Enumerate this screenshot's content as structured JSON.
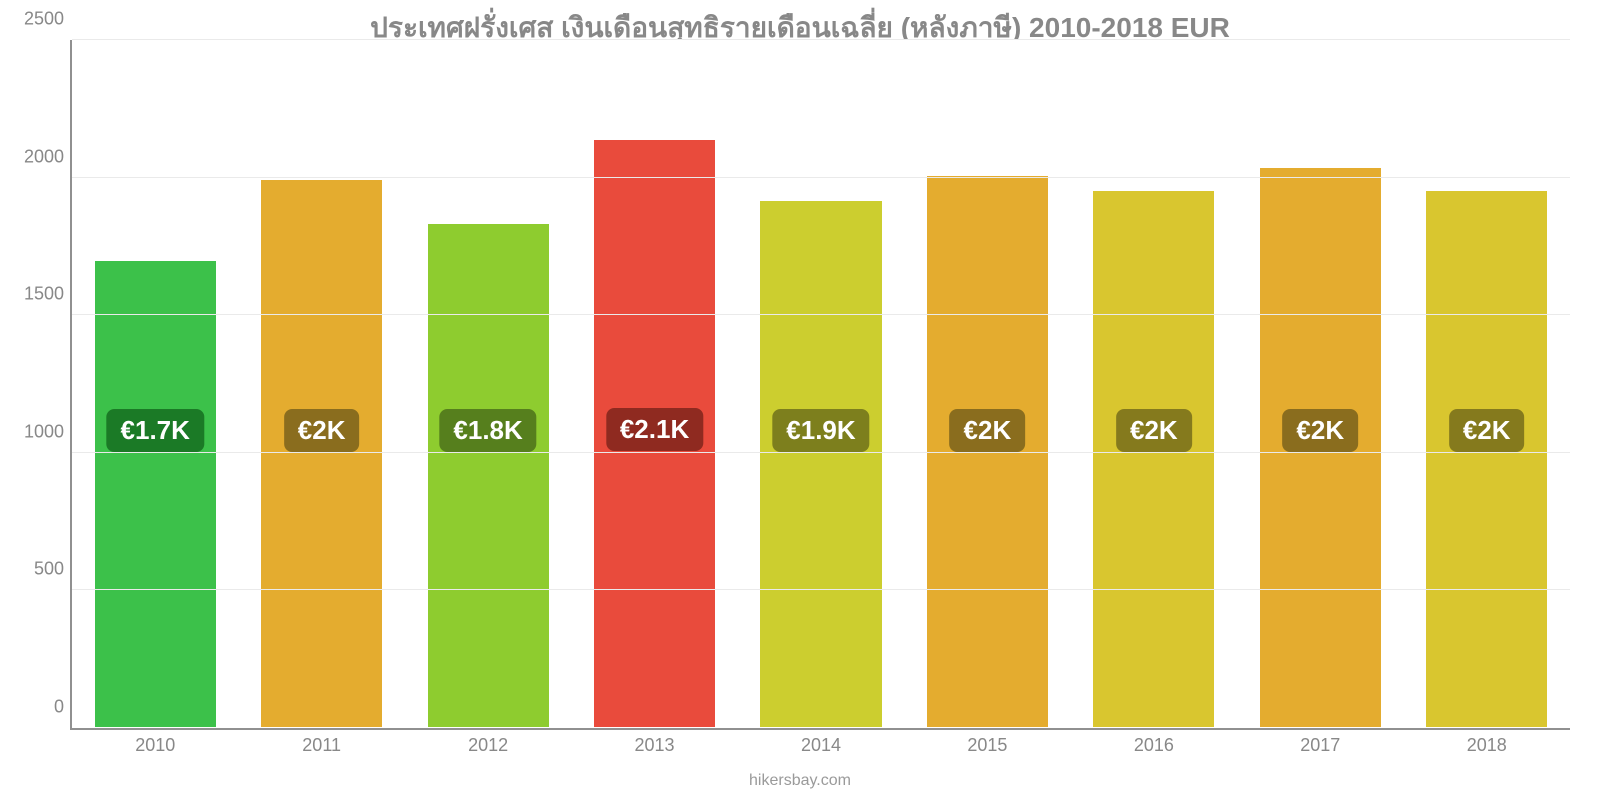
{
  "chart": {
    "type": "bar",
    "title": "ประเทศฝรั่งเศส เงินเดือนสุทธิรายเดือนเฉลี่ย (หลังภาษี) 2010-2018 EUR",
    "title_fontsize": 28,
    "title_color": "#888888",
    "background_color": "#ffffff",
    "grid_color": "#eaeaea",
    "axis_color": "#909090",
    "ylim": [
      0,
      2500
    ],
    "ytick_step": 500,
    "yticks": [
      0,
      500,
      1000,
      1500,
      2000,
      2500
    ],
    "ytick_fontsize": 18,
    "ytick_color": "#888888",
    "xtick_fontsize": 18,
    "xtick_color": "#888888",
    "bar_width_ratio": 0.74,
    "bar_border_color": "#ffffff",
    "categories": [
      "2010",
      "2011",
      "2012",
      "2013",
      "2014",
      "2015",
      "2016",
      "2017",
      "2018"
    ],
    "values": [
      1700,
      1995,
      1835,
      2140,
      1920,
      2010,
      1955,
      2040,
      1955
    ],
    "bar_colors": [
      "#3cc14a",
      "#e4ac2f",
      "#8ecc2f",
      "#e94b3c",
      "#ccce2f",
      "#e4ac2f",
      "#d9c62f",
      "#e4ac2f",
      "#d9c62f"
    ],
    "value_labels": [
      "€1.7K",
      "€2K",
      "€1.8K",
      "€2.1K",
      "€1.9K",
      "€2K",
      "€2K",
      "€2K",
      "€2K"
    ],
    "value_label_fontsize": 26,
    "value_label_text_color": "#ffffff",
    "value_label_bg_colors": [
      "#1b7a26",
      "#8a6d1e",
      "#567f1d",
      "#8f2a20",
      "#7d7f1d",
      "#8a6d1e",
      "#857a1d",
      "#8a6d1e",
      "#857a1d"
    ],
    "value_label_y_value": 1090
  },
  "attribution": {
    "text": "hikersbay.com",
    "fontsize": 16,
    "color": "#9a9a9a"
  }
}
